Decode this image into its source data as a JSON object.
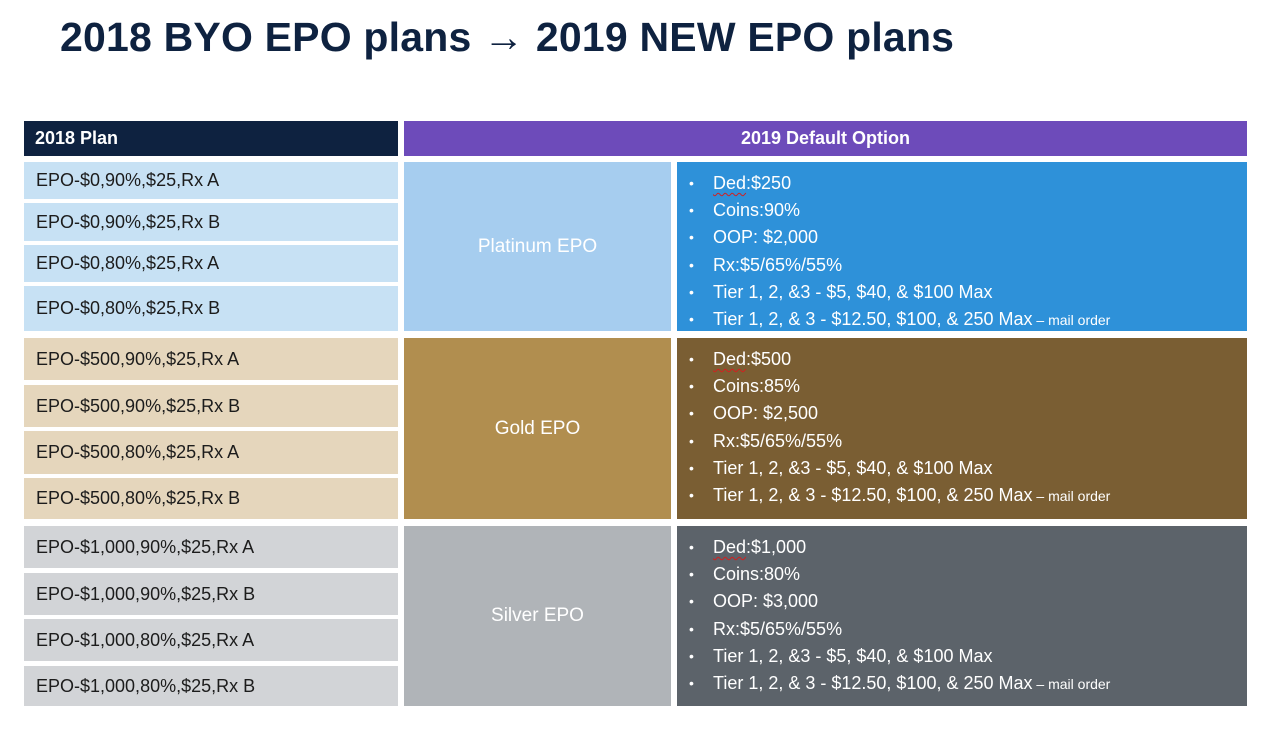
{
  "title": "2018 BYO EPO plans → 2019 NEW EPO plans",
  "headers": {
    "plan_2018": "2018 Plan",
    "default_2019": "2019 Default Option"
  },
  "groups": [
    {
      "name": "Platinum EPO",
      "plans": [
        "EPO-$0,90%,$25,Rx A",
        "EPO-$0,90%,$25,Rx B",
        "EPO-$0,80%,$25,Rx A",
        "EPO-$0,80%,$25,Rx B"
      ],
      "details": {
        "ded_label": "Ded",
        "ded_value": ":$250",
        "coins": "Coins:90%",
        "oop": "OOP: $2,000",
        "rx": "Rx:$5/65%/55%",
        "tier_retail": "Tier 1, 2, &3 - $5, $40, & $100 Max",
        "tier_mail": "Tier 1, 2, & 3 - $12.50, $100, & 250 Max",
        "mail_suffix": " – mail order"
      },
      "colors": {
        "plan_bg": "#c7e1f4",
        "mid_bg": "#a6cdef",
        "detail_bg": "#2e91d9"
      }
    },
    {
      "name": "Gold EPO",
      "plans": [
        "EPO-$500,90%,$25,Rx A",
        "EPO-$500,90%,$25,Rx B",
        "EPO-$500,80%,$25,Rx A",
        "EPO-$500,80%,$25,Rx B"
      ],
      "details": {
        "ded_label": "Ded",
        "ded_value": ":$500",
        "coins": "Coins:85%",
        "oop": "OOP: $2,500",
        "rx": "Rx:$5/65%/55%",
        "tier_retail": "Tier 1, 2, &3 - $5, $40, & $100 Max",
        "tier_mail": "Tier 1, 2, & 3 - $12.50, $100, & 250 Max",
        "mail_suffix": " – mail order"
      },
      "colors": {
        "plan_bg": "#e5d6bc",
        "mid_bg": "#b18e4f",
        "detail_bg": "#7a5e33"
      }
    },
    {
      "name": "Silver EPO",
      "plans": [
        "EPO-$1,000,90%,$25,Rx A",
        "EPO-$1,000,90%,$25,Rx B",
        "EPO-$1,000,80%,$25,Rx A",
        "EPO-$1,000,80%,$25,Rx B"
      ],
      "details": {
        "ded_label": "Ded",
        "ded_value": ":$1,000",
        "coins": "Coins:80%",
        "oop": "OOP: $3,000",
        "rx": "Rx:$5/65%/55%",
        "tier_retail": "Tier 1, 2, &3 - $5, $40, & $100 Max",
        "tier_mail": "Tier 1, 2, & 3 - $12.50, $100, & 250 Max",
        "mail_suffix": " – mail order"
      },
      "colors": {
        "plan_bg": "#d2d4d7",
        "mid_bg": "#b0b4b8",
        "detail_bg": "#5c636a"
      }
    }
  ]
}
